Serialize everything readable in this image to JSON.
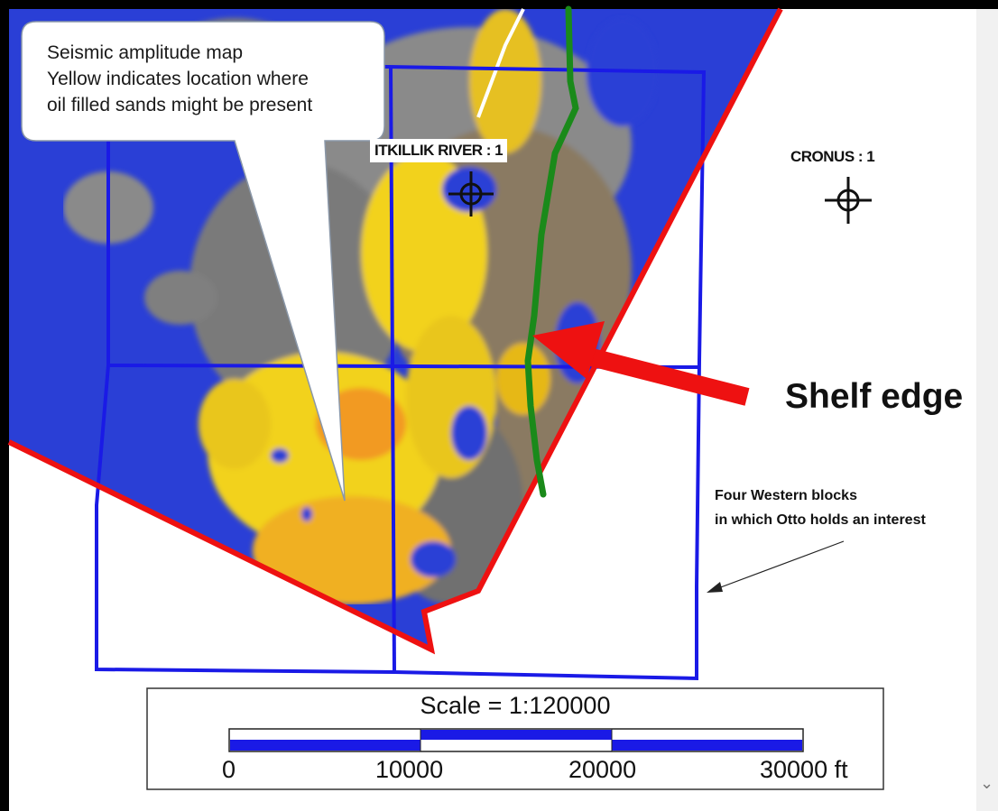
{
  "callout": {
    "lines": [
      "Seismic amplitude map",
      "Yellow indicates location where",
      "oil filled sands might be present"
    ]
  },
  "wells": {
    "itkillik": {
      "label": "ITKILLIK RIVER : 1",
      "icon": "well-symbol-icon"
    },
    "cronus": {
      "label": "CRONUS : 1",
      "icon": "well-symbol-icon"
    }
  },
  "annotations": {
    "shelf_edge": "Shelf edge",
    "blocks_line1": "Four Western blocks",
    "blocks_line2": "in which Otto holds an interest"
  },
  "scale": {
    "title": "Scale = 1:120000",
    "ticks": [
      "0",
      "10000",
      "20000",
      "30000 ft"
    ]
  },
  "colors": {
    "blocks": "#1a1ae6",
    "survey_boundary": "#ee1111",
    "shelf_edge_line": "#1a8a1a",
    "arrow": "#ee1111",
    "amplitude_low": "#2a3fd6",
    "amplitude_mid": "#8a8a8a",
    "amplitude_high": "#f2d21a"
  },
  "scrollbar": {
    "icon": "chevron-down-icon",
    "glyph": "⌄"
  }
}
